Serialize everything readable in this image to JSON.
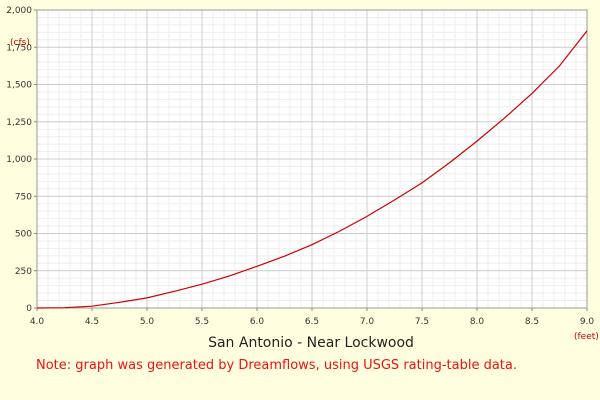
{
  "chart_data": {
    "type": "line",
    "title": "San Antonio - Near Lockwood",
    "xlabel": "(feet)",
    "ylabel": "(cfs)",
    "xlim": [
      4.0,
      9.0
    ],
    "ylim": [
      0,
      2000
    ],
    "x_ticks": [
      "4.0",
      "4.5",
      "5.0",
      "5.5",
      "6.0",
      "6.5",
      "7.0",
      "7.5",
      "8.0",
      "8.5",
      "9.0"
    ],
    "y_ticks": [
      "0",
      "250",
      "500",
      "750",
      "1,000",
      "1,250",
      "1,500",
      "1,750",
      "2,000"
    ],
    "grid": true,
    "series": [
      {
        "color": "#cc0000",
        "x": [
          4.0,
          4.25,
          4.5,
          4.75,
          5.0,
          5.25,
          5.5,
          5.75,
          6.0,
          6.25,
          6.5,
          6.75,
          7.0,
          7.25,
          7.5,
          7.75,
          8.0,
          8.25,
          8.5,
          8.75,
          9.0
        ],
        "y": [
          0,
          2,
          12,
          38,
          68,
          112,
          160,
          215,
          280,
          348,
          425,
          515,
          615,
          725,
          840,
          975,
          1120,
          1275,
          1440,
          1625,
          1860
        ]
      }
    ]
  },
  "note": "Note: graph was generated by Dreamflows, using USGS rating-table data."
}
